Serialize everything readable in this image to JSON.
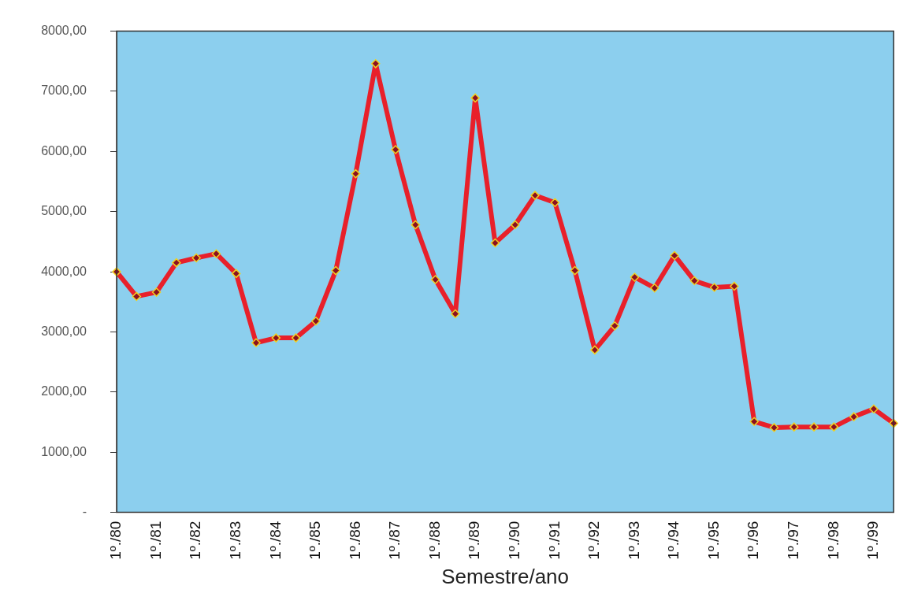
{
  "chart_data": {
    "type": "line",
    "xlabel": "Semestre/ano",
    "categories": [
      "1º./80",
      null,
      "1º./81",
      null,
      "1º./82",
      null,
      "1º./83",
      null,
      "1º./84",
      null,
      "1º./85",
      null,
      "1º./86",
      null,
      "1º./87",
      null,
      "1º./88",
      null,
      "1º./89",
      null,
      "1º./90",
      null,
      "1º./91",
      null,
      "1º./92",
      null,
      "1º./93",
      null,
      "1º./94",
      null,
      "1º./95",
      null,
      "1º./96",
      null,
      "1º./97",
      null,
      "1º./98",
      null,
      "1º./99",
      null
    ],
    "series": [
      {
        "color": "#e8202a",
        "values": [
          4000,
          3590,
          3660,
          4150,
          4230,
          4300,
          3970,
          2820,
          2900,
          2900,
          3180,
          4020,
          5630,
          7460,
          6030,
          4780,
          3870,
          3300,
          6890,
          4480,
          4780,
          5270,
          5150,
          4020,
          2700,
          3100,
          3910,
          3730,
          4270,
          3850,
          3740,
          3760,
          1510,
          1410,
          1420,
          1420,
          1420,
          1590,
          1720,
          1480
        ]
      }
    ],
    "ylim": [
      0,
      8000
    ],
    "yticks": [
      {
        "value": 0,
        "label": "-"
      },
      {
        "value": 1000,
        "label": "1000,00"
      },
      {
        "value": 2000,
        "label": "2000,00"
      },
      {
        "value": 3000,
        "label": "3000,00"
      },
      {
        "value": 4000,
        "label": "4000,00"
      },
      {
        "value": 5000,
        "label": "5000,00"
      },
      {
        "value": 6000,
        "label": "6000,00"
      },
      {
        "value": 7000,
        "label": "7000,00"
      },
      {
        "value": 8000,
        "label": "8000,00"
      }
    ],
    "grid": false,
    "legend": false,
    "marker": "diamond",
    "line_style": "solid"
  }
}
